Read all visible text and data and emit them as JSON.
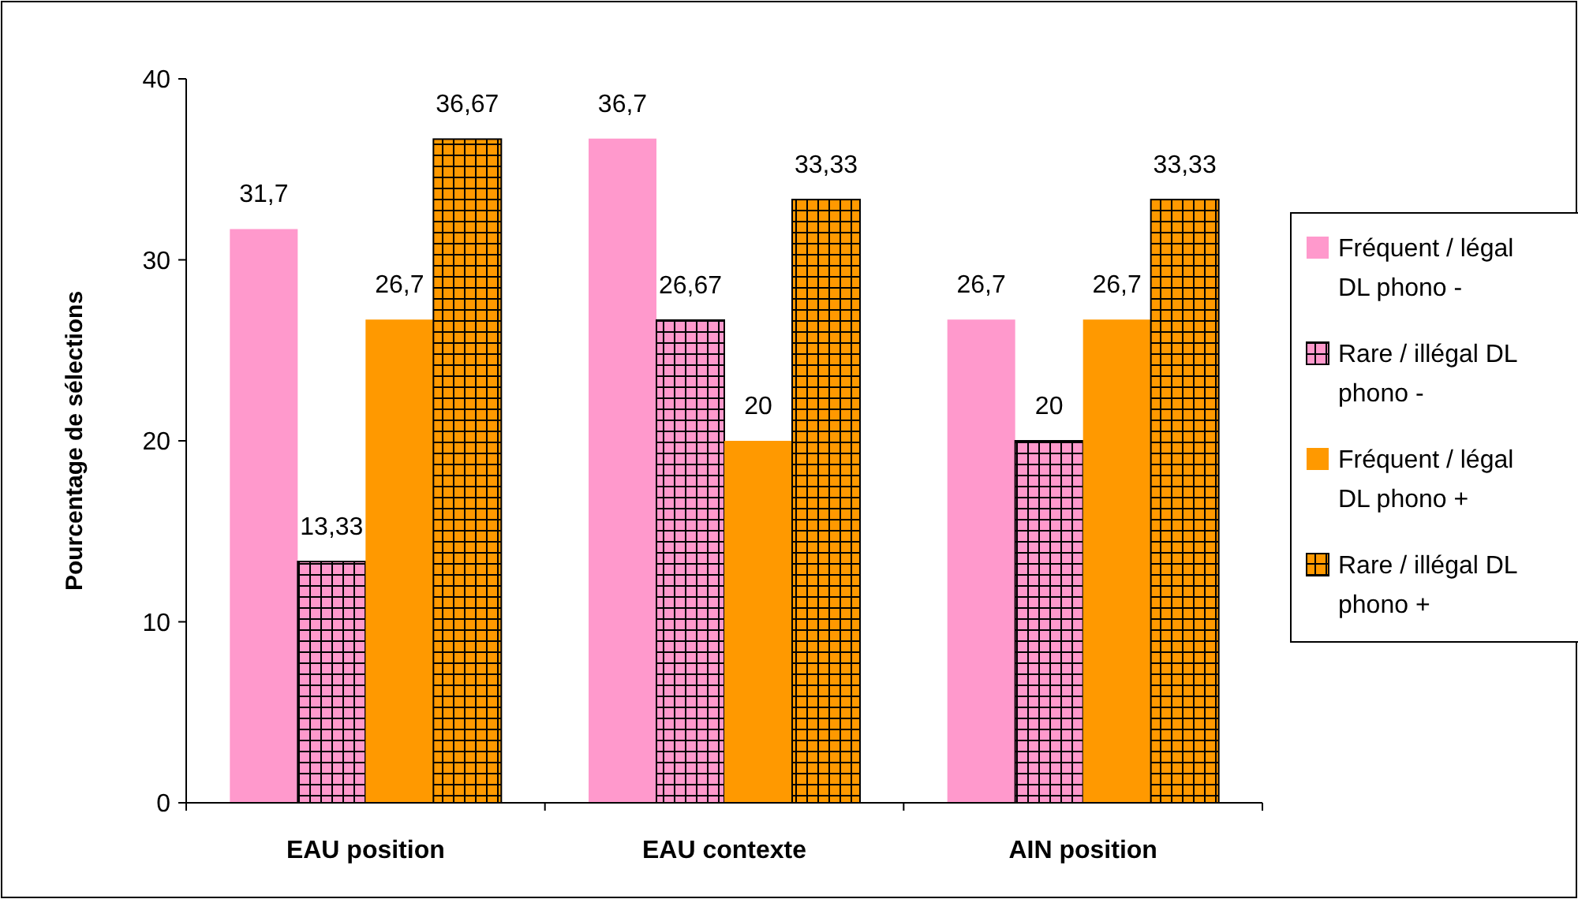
{
  "chart_data": {
    "type": "bar",
    "ylabel": "Pourcentage de sélections",
    "categories": [
      "EAU position",
      "EAU contexte",
      "AIN position"
    ],
    "series": [
      {
        "name": "Fréquent / légal DL phono -",
        "color": "#ff99cc",
        "values": [
          31.7,
          36.7,
          26.7
        ],
        "value_labels": [
          "31,7",
          "36,7",
          "26,7"
        ]
      },
      {
        "name": "Rare / illégal DL phono -",
        "color": "#ff99cc",
        "values": [
          13.33,
          26.67,
          20
        ],
        "value_labels": [
          "13,33",
          "26,67",
          "20"
        ]
      },
      {
        "name": "Fréquent / légal DL phono +",
        "color": "#ff9900",
        "values": [
          26.7,
          20,
          26.7
        ],
        "value_labels": [
          "26,7",
          "20",
          "26,7"
        ]
      },
      {
        "name": "Rare / illégal DL phono +",
        "color": "#ff9900",
        "values": [
          36.67,
          33.33,
          33.33
        ],
        "value_labels": [
          "36,67",
          "33,33",
          "33,33"
        ]
      }
    ],
    "ylim": [
      0,
      40
    ],
    "yticks": [
      0,
      10,
      20,
      30,
      40
    ],
    "grid": false,
    "legend": "right"
  }
}
